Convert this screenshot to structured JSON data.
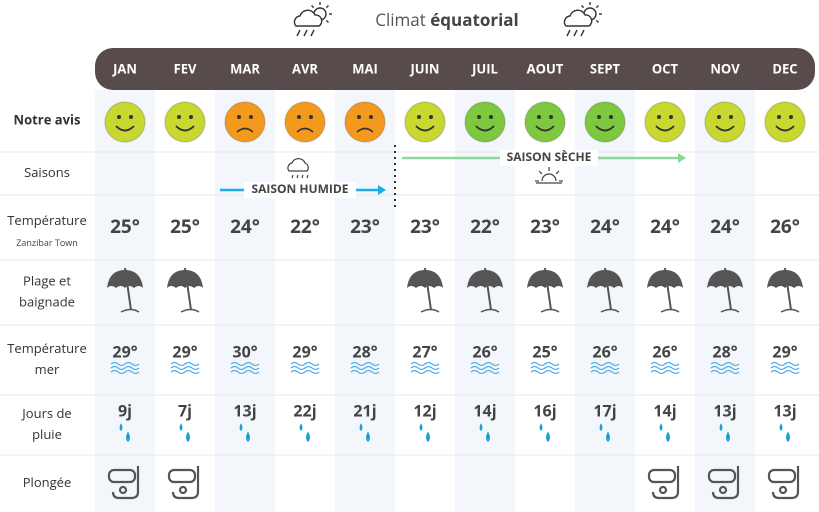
{
  "header": {
    "title": "Climat",
    "title_bold": "équatorial"
  },
  "months": [
    "JAN",
    "FEV",
    "MAR",
    "AVR",
    "MAI",
    "JUIN",
    "JUIL",
    "AOUT",
    "SEPT",
    "OCT",
    "NOV",
    "DEC"
  ],
  "rows": {
    "avis": {
      "label": [
        "Notre avis"
      ],
      "moods": [
        "happy",
        "happy",
        "sad",
        "sad",
        "sad",
        "happy",
        "happy",
        "happy",
        "happy",
        "happy",
        "happy",
        "happy"
      ],
      "colors": [
        "#c8d830",
        "#c8d830",
        "#f39a1e",
        "#f39a1e",
        "#f39a1e",
        "#c8d830",
        "#7ec840",
        "#7ec840",
        "#7ec840",
        "#c8d830",
        "#c8d830",
        "#c8d830"
      ]
    },
    "saisons": {
      "label": [
        "Saisons"
      ],
      "humide": "SAISON HUMIDE",
      "seche": "SAISON SÈCHE"
    },
    "temperature": {
      "label": [
        "Température"
      ],
      "sublabel": "Zanzibar Town",
      "values": [
        "25°",
        "25°",
        "24°",
        "22°",
        "23°",
        "23°",
        "22°",
        "23°",
        "24°",
        "24°",
        "24°",
        "26°"
      ]
    },
    "plage": {
      "label": [
        "Plage et",
        "baignade"
      ],
      "values": [
        true,
        true,
        false,
        false,
        false,
        true,
        true,
        true,
        true,
        true,
        true,
        true
      ]
    },
    "mer": {
      "label": [
        "Température",
        "mer"
      ],
      "values": [
        "29°",
        "29°",
        "30°",
        "29°",
        "28°",
        "27°",
        "26°",
        "25°",
        "26°",
        "26°",
        "28°",
        "29°"
      ]
    },
    "pluie": {
      "label": [
        "Jours de",
        "pluie"
      ],
      "values": [
        "9j",
        "7j",
        "13j",
        "22j",
        "21j",
        "12j",
        "14j",
        "16j",
        "17j",
        "14j",
        "13j",
        "13j"
      ]
    },
    "plongee": {
      "label": [
        "Plongée"
      ],
      "values": [
        true,
        true,
        false,
        false,
        false,
        false,
        false,
        false,
        false,
        true,
        true,
        true
      ]
    }
  }
}
